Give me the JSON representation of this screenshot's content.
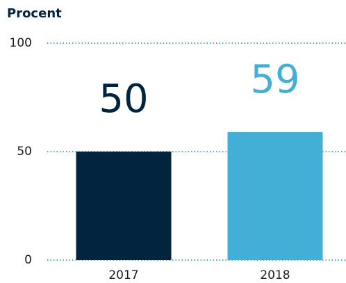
{
  "chart_data": {
    "type": "bar",
    "y_label": "Procent",
    "categories": [
      "2017",
      "2018"
    ],
    "values": [
      50,
      59
    ],
    "colors": [
      "#03243f",
      "#44afd6"
    ],
    "ylim": [
      0,
      100
    ],
    "yticks": [
      0,
      50,
      100
    ],
    "grid": true,
    "grid_color": "#44afd6"
  }
}
